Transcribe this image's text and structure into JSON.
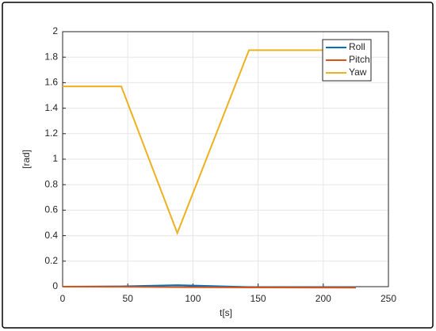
{
  "chart_data": {
    "type": "line",
    "xlabel": "t[s]",
    "ylabel": "[rad]",
    "x": [
      0,
      45,
      88,
      143,
      225
    ],
    "series": [
      {
        "name": "Roll",
        "color": "#0072BD",
        "values": [
          0,
          0.002,
          0.012,
          -0.003,
          -0.004
        ]
      },
      {
        "name": "Pitch",
        "color": "#D95319",
        "values": [
          0,
          -0.001,
          -0.004,
          -0.006,
          -0.008
        ]
      },
      {
        "name": "Yaw",
        "color": "#EDB120",
        "values": [
          1.571,
          1.571,
          0.42,
          1.855,
          1.855
        ]
      }
    ],
    "xlim": [
      0,
      250
    ],
    "xticks": [
      0,
      50,
      100,
      150,
      200,
      250
    ],
    "ylim": [
      0,
      2
    ],
    "yticks": [
      0,
      0.2,
      0.4,
      0.6,
      0.8,
      1,
      1.2,
      1.4,
      1.6,
      1.8,
      2
    ],
    "grid": true,
    "legend": "top-right"
  }
}
